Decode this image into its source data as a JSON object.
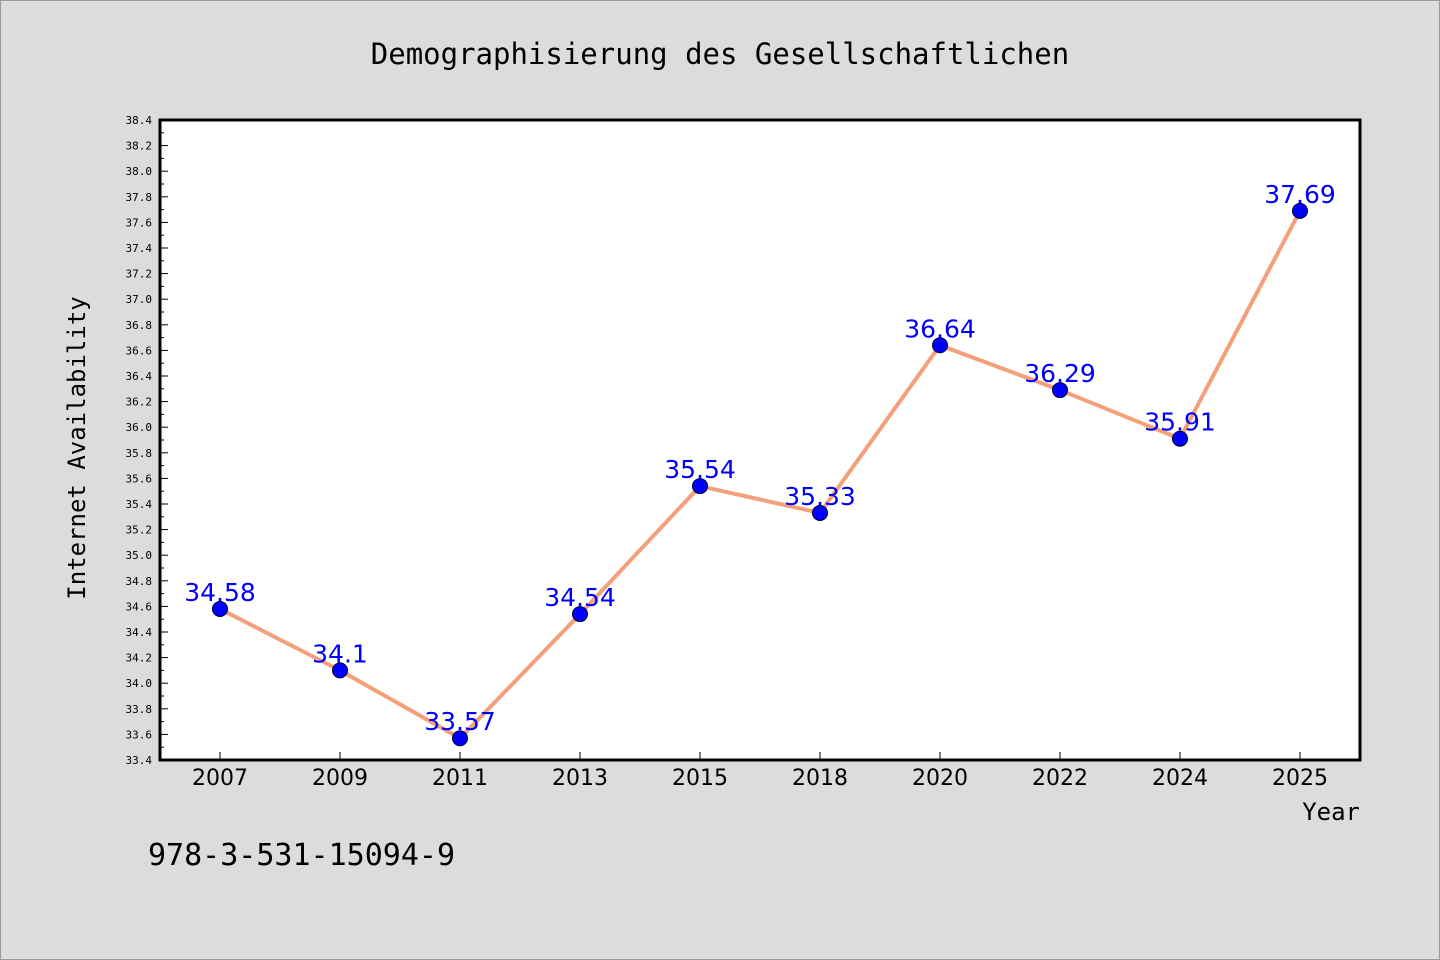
{
  "chart_data": {
    "type": "line",
    "title": "Demographisierung des Gesellschaftlichen",
    "xlabel": "Year",
    "ylabel": "Internet Availability",
    "categories": [
      "2007",
      "2009",
      "2011",
      "2013",
      "2015",
      "2018",
      "2020",
      "2022",
      "2024",
      "2025"
    ],
    "series": [
      {
        "values": [
          34.58,
          34.1,
          33.57,
          34.54,
          35.54,
          35.33,
          36.64,
          36.29,
          35.91,
          37.69
        ],
        "labels": [
          "34.58",
          "34.1",
          "33.57",
          "34.54",
          "35.54",
          "35.33",
          "36.64",
          "36.29",
          "35.91",
          "37.69"
        ]
      }
    ],
    "ylim": [
      33.4,
      38.4
    ],
    "yticks": [
      "33.4",
      "33.6",
      "33.8",
      "34.0",
      "34.2",
      "34.4",
      "34.6",
      "34.8",
      "35.0",
      "35.2",
      "35.4",
      "35.6",
      "35.8",
      "36.0",
      "36.2",
      "36.4",
      "36.6",
      "36.8",
      "37.0",
      "37.2",
      "37.4",
      "37.6",
      "37.8",
      "38.0",
      "38.2",
      "38.4"
    ],
    "grid": false,
    "line_color": "#f4a07a",
    "marker_color": "#0000ff",
    "label_color": "#0000ff",
    "background": "#dcdcdc"
  },
  "annotation": "978-3-531-15094-9"
}
